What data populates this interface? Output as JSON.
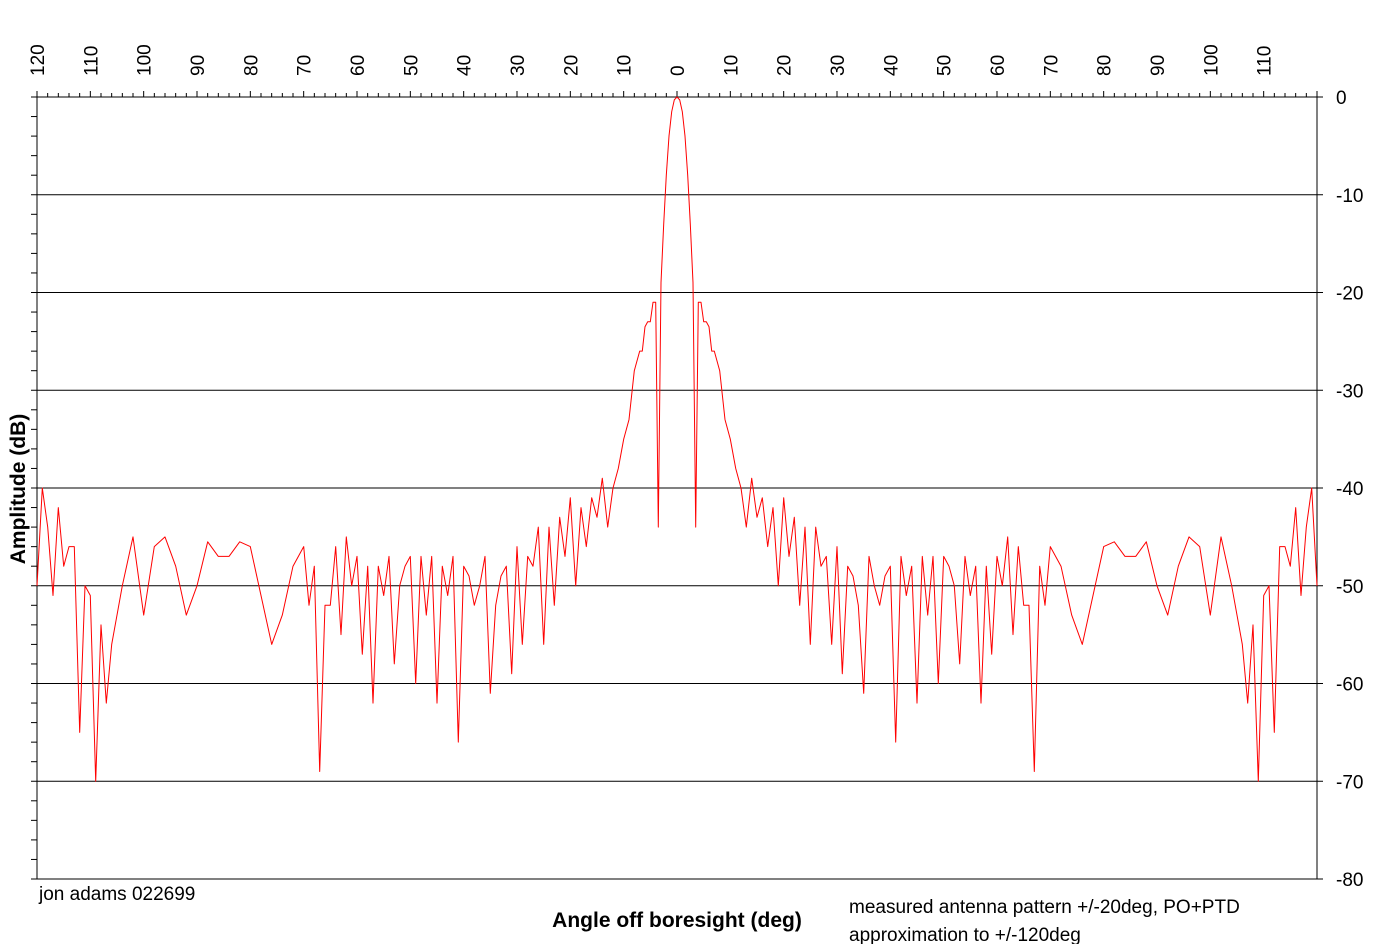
{
  "chart_data": {
    "type": "line",
    "title": "",
    "xlabel": "Angle off boresight (deg)",
    "ylabel": "Amplitude (dB)",
    "xlim": [
      -120,
      120
    ],
    "ylim": [
      -80,
      0
    ],
    "x_tick_labels": [
      "120",
      "110",
      "100",
      "90",
      "80",
      "70",
      "60",
      "50",
      "40",
      "30",
      "20",
      "10",
      "0",
      "10",
      "20",
      "30",
      "40",
      "50",
      "60",
      "70",
      "80",
      "90",
      "100",
      "110"
    ],
    "x_tick_values": [
      -120,
      -110,
      -100,
      -90,
      -80,
      -70,
      -60,
      -50,
      -40,
      -30,
      -20,
      -10,
      0,
      10,
      20,
      30,
      40,
      50,
      60,
      70,
      80,
      90,
      100,
      110
    ],
    "y_tick_labels": [
      "0",
      "-10",
      "-20",
      "-30",
      "-40",
      "-50",
      "-60",
      "-70",
      "-80"
    ],
    "y_tick_values": [
      0,
      -10,
      -20,
      -30,
      -40,
      -50,
      -60,
      -70,
      -80
    ],
    "grid": "horizontal",
    "series_color": "#ff0000",
    "symmetric": true,
    "series": [
      {
        "x": [
          0,
          0.5,
          1,
          1.5,
          2,
          2.5,
          3,
          3.5,
          4,
          4.5,
          5,
          5.5,
          6,
          6.5,
          7,
          8,
          9,
          10,
          11,
          12,
          13,
          14,
          15,
          16,
          17,
          18,
          19,
          20,
          21,
          22,
          23,
          24,
          25,
          26,
          27,
          28,
          29,
          30,
          31,
          32,
          33,
          34,
          35,
          36,
          37,
          38,
          39,
          40,
          41,
          42,
          43,
          44,
          45,
          46,
          47,
          48,
          49,
          50,
          51,
          52,
          53,
          54,
          55,
          56,
          57,
          58,
          59,
          60,
          61,
          62,
          63,
          64,
          65,
          66,
          67,
          68,
          69,
          70,
          72,
          74,
          76,
          78,
          80,
          82,
          84,
          86,
          88,
          90,
          92,
          94,
          96,
          98,
          100,
          102,
          104,
          106,
          107,
          108,
          109,
          110,
          111,
          112,
          113,
          114,
          115,
          116,
          117,
          118,
          119,
          120
        ],
        "y": [
          0,
          -0.3,
          -1.5,
          -4,
          -8,
          -13,
          -19,
          -44,
          -21,
          -21,
          -23,
          -23,
          -23.5,
          -26,
          -26,
          -28,
          -33,
          -35,
          -38,
          -40,
          -44,
          -39,
          -43,
          -41,
          -46,
          -42,
          -50,
          -41,
          -47,
          -43,
          -52,
          -44,
          -56,
          -44,
          -48,
          -47,
          -56,
          -46,
          -59,
          -48,
          -49,
          -52,
          -61,
          -47,
          -50,
          -52,
          -49,
          -48,
          -66,
          -47,
          -51,
          -48,
          -62,
          -47,
          -53,
          -47,
          -60,
          -47,
          -48,
          -50,
          -58,
          -47,
          -51,
          -48,
          -62,
          -48,
          -57,
          -47,
          -50,
          -45,
          -55,
          -46,
          -52,
          -52,
          -69,
          -48,
          -52,
          -46,
          -48,
          -53,
          -56,
          -51,
          -46,
          -45.5,
          -47,
          -47,
          -45.5,
          -50,
          -53,
          -48,
          -45,
          -46,
          -53,
          -45,
          -50,
          -56,
          -62,
          -54,
          -70,
          -51,
          -50,
          -65,
          -46,
          -46,
          -48,
          -42,
          -51,
          -44,
          -40,
          -50
        ]
      }
    ],
    "annotations": [
      "jon adams 022699",
      "measured antenna pattern +/-20deg, PO+PTD",
      "approximation to +/-120deg"
    ]
  }
}
